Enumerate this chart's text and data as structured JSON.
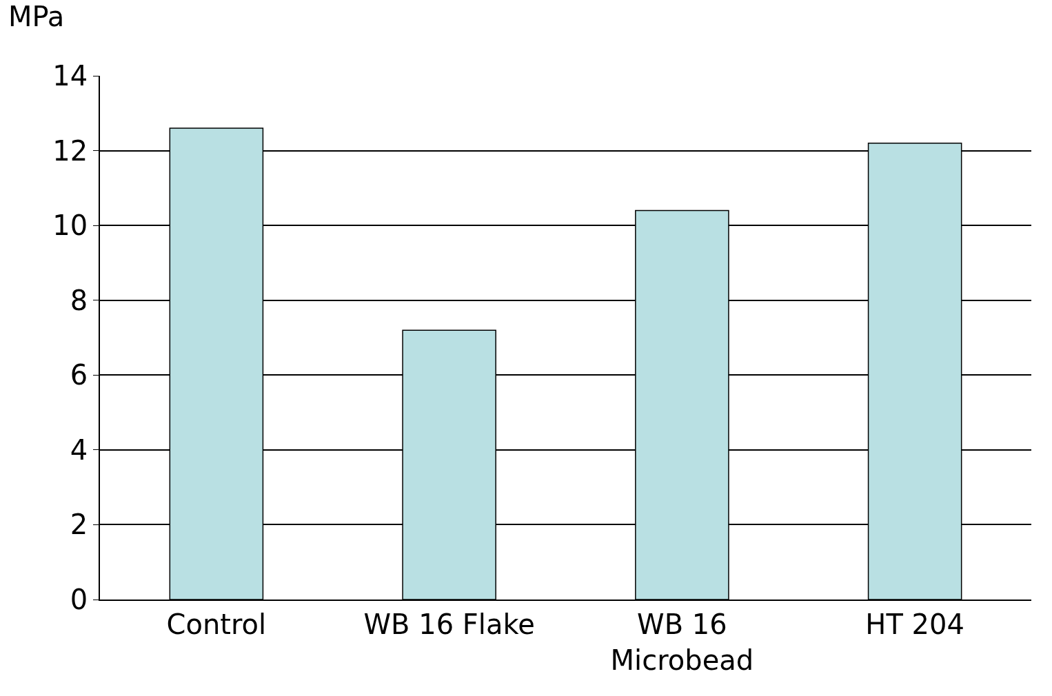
{
  "chart_data": {
    "type": "bar",
    "ylabel": "MPa",
    "categories": [
      "Control",
      "WB 16 Flake",
      "WB 16 Microbead",
      "HT 204"
    ],
    "values": [
      12.6,
      7.2,
      10.4,
      12.2
    ],
    "color": "#b9e0e3",
    "ylim": [
      0,
      14
    ],
    "yticks": [
      0,
      2,
      4,
      6,
      8,
      10,
      12,
      14
    ],
    "grid": "y"
  }
}
